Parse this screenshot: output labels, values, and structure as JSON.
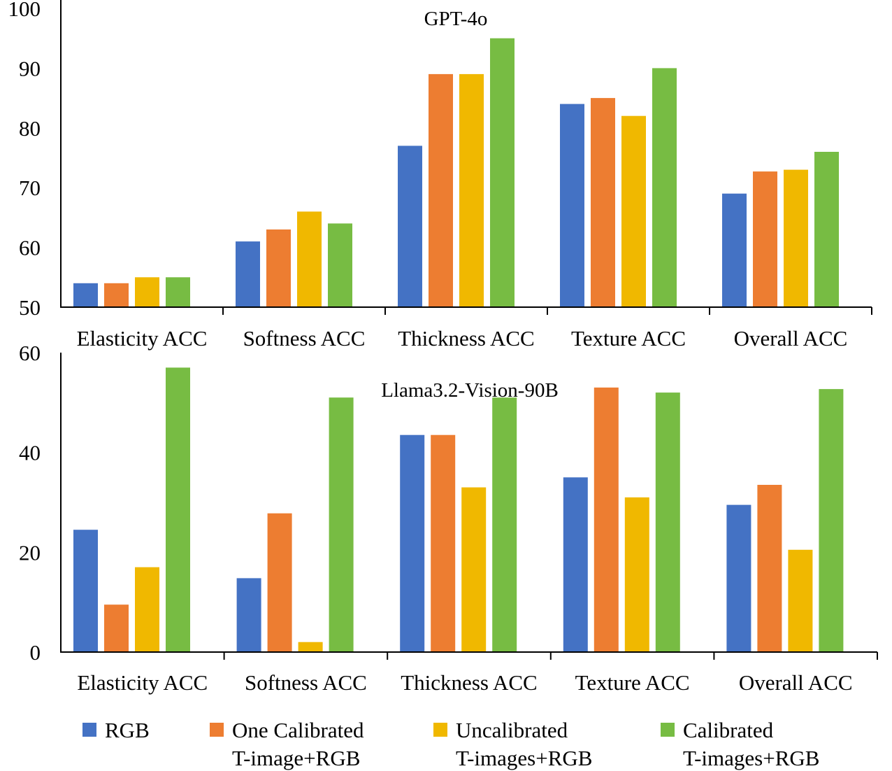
{
  "chart_data": [
    {
      "type": "bar",
      "title": "GPT-4o",
      "categories": [
        "Elasticity ACC",
        "Softness ACC",
        "Thickness ACC",
        "Texture ACC",
        "Overall ACC"
      ],
      "ylim": [
        50,
        100
      ],
      "yticks": [
        50,
        60,
        70,
        80,
        90,
        100
      ],
      "grid": false,
      "series": [
        {
          "name": "RGB",
          "color": "#4472C4",
          "values": [
            54,
            61,
            77,
            84,
            69
          ]
        },
        {
          "name": "One Calibrated T-image+RGB",
          "color": "#ED7D31",
          "values": [
            54,
            63,
            89,
            85,
            72.7
          ]
        },
        {
          "name": "Uncalibrated T-images+RGB",
          "color": "#F0B800",
          "values": [
            55,
            66,
            89,
            82,
            73
          ]
        },
        {
          "name": "Calibrated T-images+RGB",
          "color": "#77BC43",
          "values": [
            55,
            64,
            95,
            90,
            76
          ]
        }
      ]
    },
    {
      "type": "bar",
      "title": "Llama3.2-Vision-90B",
      "categories": [
        "Elasticity ACC",
        "Softness ACC",
        "Thickness ACC",
        "Texture ACC",
        "Overall ACC"
      ],
      "ylim": [
        0,
        60
      ],
      "yticks": [
        0,
        20,
        40,
        60
      ],
      "grid": false,
      "series": [
        {
          "name": "RGB",
          "color": "#4472C4",
          "values": [
            24.5,
            14.8,
            43.5,
            35,
            29.5
          ]
        },
        {
          "name": "One Calibrated T-image+RGB",
          "color": "#ED7D31",
          "values": [
            9.5,
            27.8,
            43.5,
            53,
            33.5
          ]
        },
        {
          "name": "Uncalibrated T-images+RGB",
          "color": "#F0B800",
          "values": [
            17,
            2,
            33,
            31,
            20.5
          ]
        },
        {
          "name": "Calibrated T-images+RGB",
          "color": "#77BC43",
          "values": [
            57,
            51,
            51,
            52,
            52.7
          ]
        }
      ]
    }
  ],
  "legend": {
    "placement": "bottom",
    "items": [
      {
        "line1": "RGB",
        "line2": "",
        "color": "#4472C4"
      },
      {
        "line1": "One Calibrated",
        "line2": "T-image+RGB",
        "color": "#ED7D31"
      },
      {
        "line1": "Uncalibrated",
        "line2": "T-images+RGB",
        "color": "#F0B800"
      },
      {
        "line1": "Calibrated",
        "line2": "T-images+RGB",
        "color": "#77BC43"
      }
    ]
  }
}
